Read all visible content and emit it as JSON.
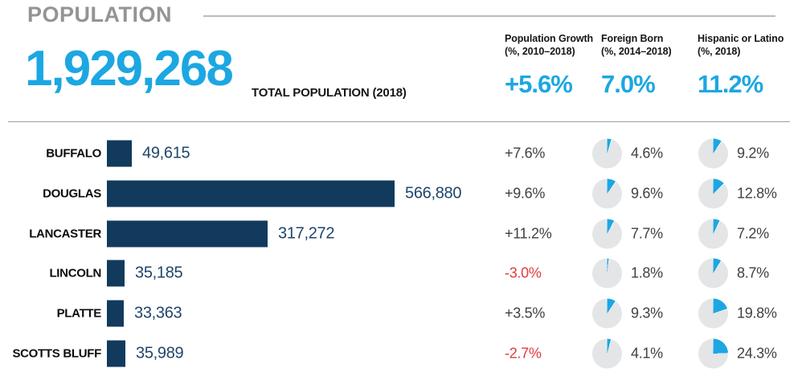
{
  "header": {
    "title": "POPULATION",
    "total_population": {
      "value": "1,929,268",
      "label": "TOTAL POPULATION (2018)"
    },
    "summary_columns": [
      {
        "label_line1": "Population Growth",
        "label_line2": "(%, 2010–2018)",
        "value": "+5.6%"
      },
      {
        "label_line1": "Foreign Born",
        "label_line2": "(%, 2014–2018)",
        "value": "7.0%"
      },
      {
        "label_line1": "Hispanic or Latino",
        "label_line2": "(%, 2018)",
        "value": "11.2%"
      }
    ]
  },
  "rows": [
    {
      "county": "BUFFALO",
      "population": 49615,
      "population_label": "49,615",
      "growth": "+7.6%",
      "foreign_born_pct": 4.6,
      "foreign_born_label": "4.6%",
      "hispanic_pct": 9.2,
      "hispanic_label": "9.2%"
    },
    {
      "county": "DOUGLAS",
      "population": 566880,
      "population_label": "566,880",
      "growth": "+9.6%",
      "foreign_born_pct": 9.6,
      "foreign_born_label": "9.6%",
      "hispanic_pct": 12.8,
      "hispanic_label": "12.8%"
    },
    {
      "county": "LANCASTER",
      "population": 317272,
      "population_label": "317,272",
      "growth": "+11.2%",
      "foreign_born_pct": 7.7,
      "foreign_born_label": "7.7%",
      "hispanic_pct": 7.2,
      "hispanic_label": "7.2%"
    },
    {
      "county": "LINCOLN",
      "population": 35185,
      "population_label": "35,185",
      "growth": "-3.0%",
      "foreign_born_pct": 1.8,
      "foreign_born_label": "1.8%",
      "hispanic_pct": 8.7,
      "hispanic_label": "8.7%"
    },
    {
      "county": "PLATTE",
      "population": 33363,
      "population_label": "33,363",
      "growth": "+3.5%",
      "foreign_born_pct": 9.3,
      "foreign_born_label": "9.3%",
      "hispanic_pct": 19.8,
      "hispanic_label": "19.8%"
    },
    {
      "county": "SCOTTS BLUFF",
      "population": 35989,
      "population_label": "35,989",
      "growth": "-2.7%",
      "foreign_born_pct": 4.1,
      "foreign_born_label": "4.1%",
      "hispanic_pct": 24.3,
      "hispanic_label": "24.3%"
    }
  ],
  "colors": {
    "accent_cyan": "#1ca7e2",
    "bar_navy": "#123a5c",
    "negative_red": "#e23b3e",
    "pie_gray": "#e4e5e7",
    "title_gray": "#929497"
  },
  "chart_data": {
    "type": "bar",
    "orientation": "horizontal",
    "title": "POPULATION",
    "total_population_2018": 1929268,
    "categories": [
      "Buffalo",
      "Douglas",
      "Lancaster",
      "Lincoln",
      "Platte",
      "Scotts Bluff"
    ],
    "series": [
      {
        "name": "Total Population (2018)",
        "values": [
          49615,
          566880,
          317272,
          35185,
          33363,
          35989
        ]
      },
      {
        "name": "Population Growth (%, 2010–2018)",
        "values": [
          7.6,
          9.6,
          11.2,
          -3.0,
          3.5,
          -2.7
        ],
        "overall": 5.6
      },
      {
        "name": "Foreign Born (%, 2014–2018)",
        "values": [
          4.6,
          9.6,
          7.7,
          1.8,
          9.3,
          4.1
        ],
        "overall": 7.0
      },
      {
        "name": "Hispanic or Latino (%, 2018)",
        "values": [
          9.2,
          12.8,
          7.2,
          8.7,
          19.8,
          24.3
        ],
        "overall": 11.2
      }
    ],
    "xlim": [
      0,
      566880
    ],
    "grid": false,
    "legend": false
  }
}
